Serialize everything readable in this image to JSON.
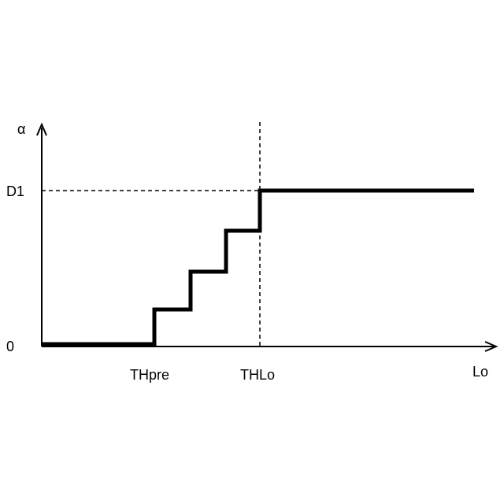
{
  "diagram": {
    "y_axis_label": "α",
    "x_axis_label": "Lo",
    "y_ticks": {
      "zero": "0",
      "d1": "D1"
    },
    "x_ticks": {
      "thpre": "THpre",
      "thlo": "THLo"
    },
    "colors": {
      "line": "#000000",
      "background": "#ffffff"
    }
  }
}
